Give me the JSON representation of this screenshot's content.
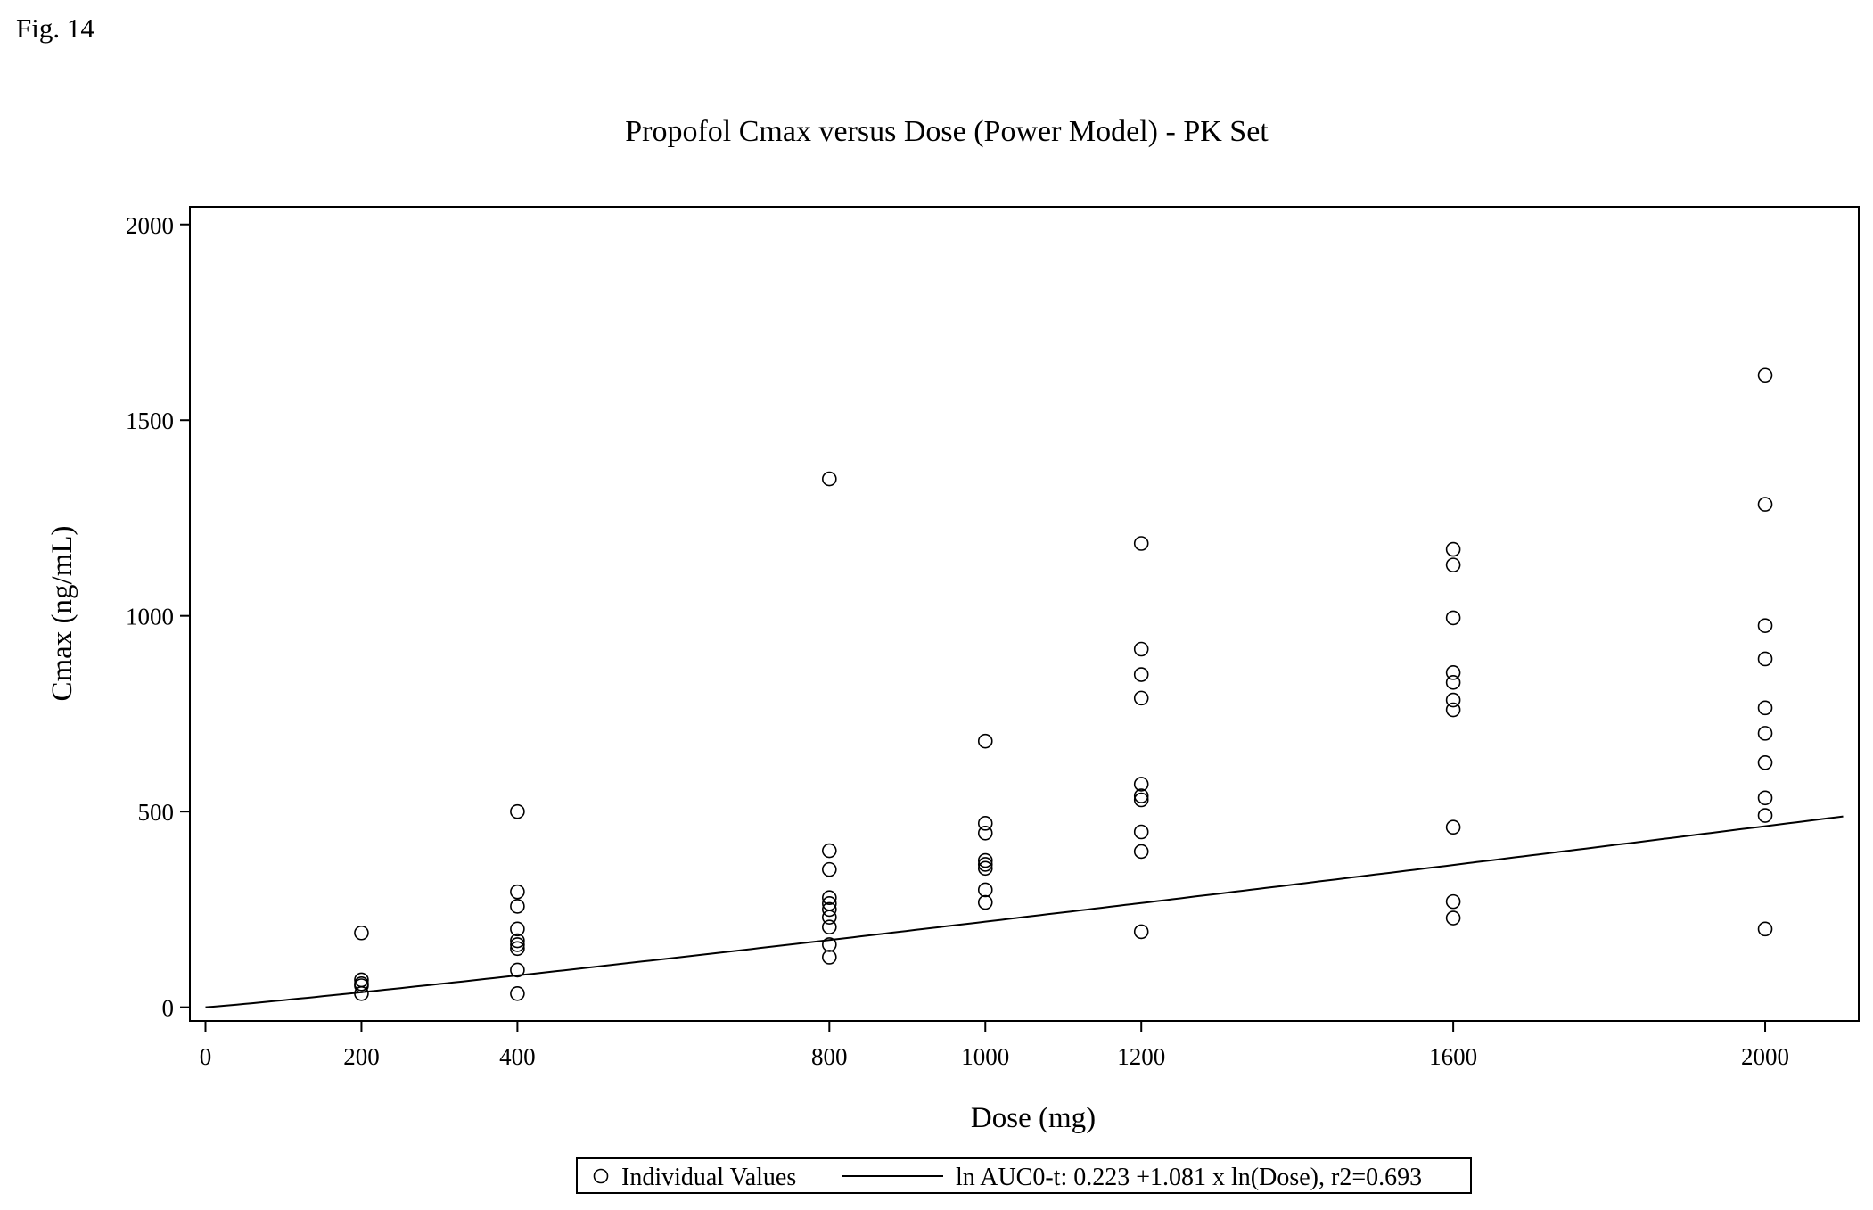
{
  "figure_label": "Fig. 14",
  "chart_data": {
    "type": "scatter",
    "title": "Propofol Cmax versus Dose (Power Model) - PK Set",
    "xlabel": "Dose (mg)",
    "ylabel": "Cmax (ng/mL)",
    "x_ticks": [
      0,
      200,
      400,
      800,
      1000,
      1200,
      1600,
      2000
    ],
    "y_ticks": [
      0,
      500,
      1000,
      1500,
      2000
    ],
    "xlim": [
      -20,
      2120
    ],
    "ylim": [
      -35,
      2045
    ],
    "grid": false,
    "legend_position": "bottom-center",
    "series": [
      {
        "name": "Individual Values",
        "kind": "scatter",
        "points": [
          [
            200,
            190
          ],
          [
            200,
            70
          ],
          [
            200,
            60
          ],
          [
            200,
            55
          ],
          [
            200,
            35
          ],
          [
            400,
            500
          ],
          [
            400,
            295
          ],
          [
            400,
            258
          ],
          [
            400,
            200
          ],
          [
            400,
            170
          ],
          [
            400,
            160
          ],
          [
            400,
            150
          ],
          [
            400,
            95
          ],
          [
            400,
            35
          ],
          [
            800,
            1350
          ],
          [
            800,
            400
          ],
          [
            800,
            352
          ],
          [
            800,
            280
          ],
          [
            800,
            265
          ],
          [
            800,
            250
          ],
          [
            800,
            230
          ],
          [
            800,
            205
          ],
          [
            800,
            160
          ],
          [
            800,
            128
          ],
          [
            1000,
            680
          ],
          [
            1000,
            470
          ],
          [
            1000,
            445
          ],
          [
            1000,
            375
          ],
          [
            1000,
            365
          ],
          [
            1000,
            355
          ],
          [
            1000,
            300
          ],
          [
            1000,
            268
          ],
          [
            1200,
            1185
          ],
          [
            1200,
            915
          ],
          [
            1200,
            850
          ],
          [
            1200,
            790
          ],
          [
            1200,
            570
          ],
          [
            1200,
            540
          ],
          [
            1200,
            530
          ],
          [
            1200,
            448
          ],
          [
            1200,
            398
          ],
          [
            1200,
            193
          ],
          [
            1600,
            1170
          ],
          [
            1600,
            1130
          ],
          [
            1600,
            995
          ],
          [
            1600,
            855
          ],
          [
            1600,
            830
          ],
          [
            1600,
            785
          ],
          [
            1600,
            760
          ],
          [
            1600,
            460
          ],
          [
            1600,
            270
          ],
          [
            1600,
            228
          ],
          [
            2000,
            1615
          ],
          [
            2000,
            1285
          ],
          [
            2000,
            975
          ],
          [
            2000,
            890
          ],
          [
            2000,
            765
          ],
          [
            2000,
            700
          ],
          [
            2000,
            625
          ],
          [
            2000,
            535
          ],
          [
            2000,
            490
          ],
          [
            2000,
            200
          ]
        ]
      },
      {
        "name": "ln AUC0-t: 0.223 +1.081 x ln(Dose), r2=0.693",
        "kind": "line",
        "intercept": 0.223,
        "slope": 1.081,
        "x_range": [
          0,
          2100
        ]
      }
    ]
  }
}
